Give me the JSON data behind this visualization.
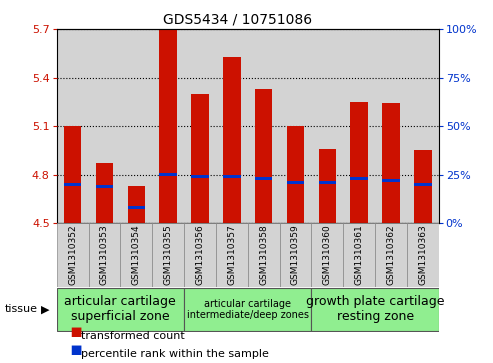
{
  "title": "GDS5434 / 10751086",
  "samples": [
    "GSM1310352",
    "GSM1310353",
    "GSM1310354",
    "GSM1310355",
    "GSM1310356",
    "GSM1310357",
    "GSM1310358",
    "GSM1310359",
    "GSM1310360",
    "GSM1310361",
    "GSM1310362",
    "GSM1310363"
  ],
  "transformed_count": [
    5.1,
    4.87,
    4.73,
    5.7,
    5.3,
    5.53,
    5.33,
    5.1,
    4.96,
    5.25,
    5.24,
    4.95
  ],
  "percentile_rank": [
    20,
    19,
    8,
    25,
    24,
    24,
    23,
    21,
    21,
    23,
    22,
    20
  ],
  "ylim_left": [
    4.5,
    5.7
  ],
  "ylim_right": [
    0,
    100
  ],
  "yticks_left": [
    4.5,
    4.8,
    5.1,
    5.4,
    5.7
  ],
  "yticks_right": [
    0,
    25,
    50,
    75,
    100
  ],
  "bar_bottom": 4.5,
  "red_color": "#cc1100",
  "blue_color": "#0033cc",
  "tissue_groups": [
    {
      "label": "articular cartilage\nsuperficial zone",
      "start": 0,
      "end": 4,
      "fontsize": 9
    },
    {
      "label": "articular cartilage\nintermediate/deep zones",
      "start": 4,
      "end": 8,
      "fontsize": 7
    },
    {
      "label": "growth plate cartilage\nresting zone",
      "start": 8,
      "end": 12,
      "fontsize": 9
    }
  ],
  "tissue_bg": "#90ee90",
  "sample_bg": "#d0d0d0",
  "legend_red": "transformed count",
  "legend_blue": "percentile rank within the sample",
  "tissue_label": "tissue",
  "bar_width": 0.55,
  "blue_bar_height": 0.022
}
